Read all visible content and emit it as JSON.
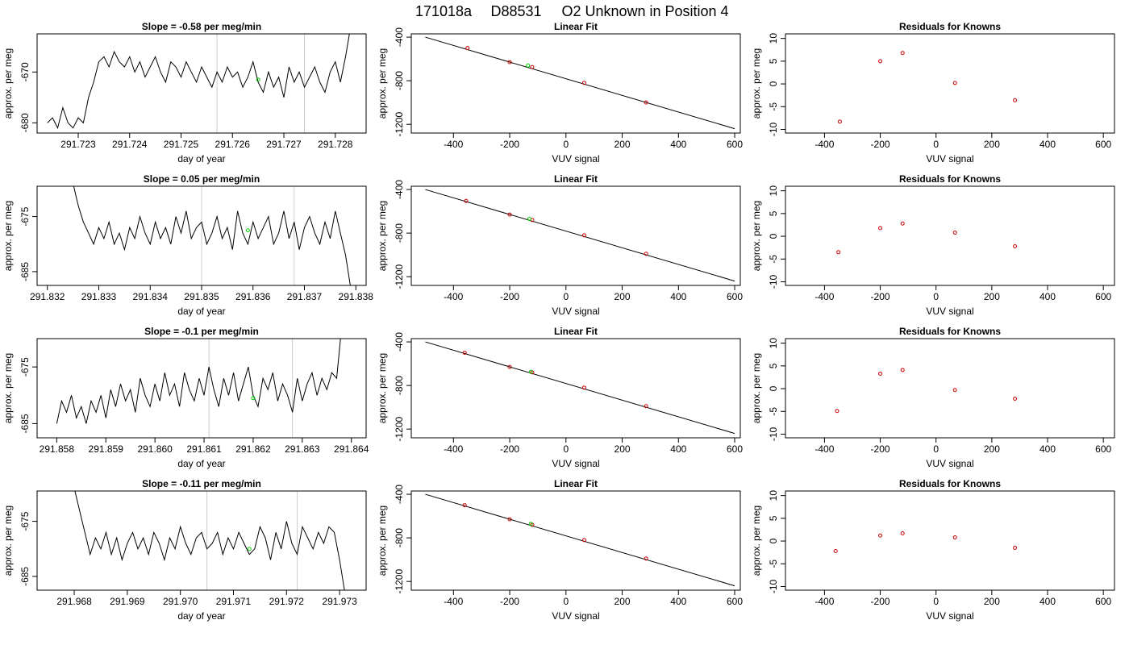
{
  "page": {
    "title_parts": [
      "171018a",
      "D88531",
      "O2 Unknown in Position  4"
    ]
  },
  "chart_data": [
    {
      "type": "line",
      "title": "Slope =  -0.58  per meg/min",
      "xlabel": "day of year",
      "ylabel": "approx. per meg",
      "xlim": [
        291.7222,
        291.7286
      ],
      "ylim": [
        -682,
        -662.5
      ],
      "xticks": [
        "291.723",
        "291.724",
        "291.725",
        "291.726",
        "291.727",
        "291.728"
      ],
      "xtick_values": [
        291.723,
        291.724,
        291.725,
        291.726,
        291.727,
        291.728
      ],
      "yticks": [
        "-680",
        "-670"
      ],
      "ytick_values": [
        -680,
        -670
      ],
      "vlines": [
        291.7257,
        291.7274
      ],
      "green_point": {
        "x": 291.7265,
        "y": -671.5
      },
      "x": [
        291.7224,
        291.7225,
        291.7226,
        291.7227,
        291.7228,
        291.7229,
        291.723,
        291.7231,
        291.7232,
        291.7233,
        291.7234,
        291.7235,
        291.7236,
        291.7237,
        291.7238,
        291.7239,
        291.724,
        291.7241,
        291.7242,
        291.7243,
        291.7244,
        291.7245,
        291.7246,
        291.7247,
        291.7248,
        291.7249,
        291.725,
        291.7251,
        291.7252,
        291.7253,
        291.7254,
        291.7255,
        291.7256,
        291.7257,
        291.7258,
        291.7259,
        291.726,
        291.7261,
        291.7262,
        291.7263,
        291.7264,
        291.7265,
        291.7266,
        291.7267,
        291.7268,
        291.7269,
        291.727,
        291.7271,
        291.7272,
        291.7273,
        291.7274,
        291.7275,
        291.7276,
        291.7277,
        291.7278,
        291.7279,
        291.728,
        291.7281,
        291.7282,
        291.7283
      ],
      "y": [
        -680,
        -679,
        -681,
        -677,
        -680,
        -681,
        -679,
        -680,
        -675,
        -672,
        -668,
        -667,
        -669,
        -666,
        -668,
        -669,
        -667,
        -670,
        -668,
        -671,
        -669,
        -667,
        -670,
        -672,
        -668,
        -669,
        -671,
        -668,
        -670,
        -672,
        -669,
        -671,
        -673,
        -670,
        -672,
        -669,
        -671,
        -670,
        -673,
        -671,
        -668,
        -672,
        -674,
        -670,
        -673,
        -671,
        -675,
        -669,
        -672,
        -670,
        -673,
        -671,
        -669,
        -672,
        -674,
        -670,
        -668,
        -672,
        -667,
        -661
      ],
      "x_data_labels": []
    },
    {
      "type": "scatter",
      "title": "Linear Fit",
      "xlabel": "VUV signal",
      "ylabel": "approx. per meg",
      "xlim": [
        -550,
        620
      ],
      "ylim": [
        -1280,
        -370
      ],
      "xticks": [
        "-400",
        "-200",
        "0",
        "200",
        "400",
        "600"
      ],
      "xtick_values": [
        -400,
        -200,
        0,
        200,
        400,
        600
      ],
      "yticks": [
        "-400",
        "-800",
        "-1200"
      ],
      "ytick_values": [
        -400,
        -800,
        -1200
      ],
      "fit_line": {
        "x": [
          -500,
          600
        ],
        "y": [
          -400,
          -1240
        ]
      },
      "points_x": [
        -350,
        -200,
        -120,
        65,
        285
      ],
      "points_y": [
        -500,
        -630,
        -675,
        -820,
        -1000
      ],
      "green_point": {
        "x": -135,
        "y": -660
      }
    },
    {
      "type": "scatter",
      "title": "Residuals for Knowns",
      "xlabel": "VUV signal",
      "ylabel": "approx. per meg",
      "xlim": [
        -540,
        640
      ],
      "ylim": [
        -10.8,
        11
      ],
      "xticks": [
        "-400",
        "-200",
        "0",
        "200",
        "400",
        "600"
      ],
      "xtick_values": [
        -400,
        -200,
        0,
        200,
        400,
        600
      ],
      "yticks": [
        "-10",
        "-5",
        "0",
        "5",
        "10"
      ],
      "ytick_values": [
        -10,
        -5,
        0,
        5,
        10
      ],
      "points_x": [
        -345,
        -200,
        -120,
        68,
        283
      ],
      "points_y": [
        -8.3,
        5.0,
        6.8,
        0.2,
        -3.6
      ]
    },
    {
      "type": "line",
      "title": "Slope =  0.05  per meg/min",
      "xlabel": "day of year",
      "ylabel": "approx. per meg",
      "xlim": [
        291.8318,
        291.8382
      ],
      "ylim": [
        -687.5,
        -669.5
      ],
      "xticks": [
        "291.832",
        "291.833",
        "291.834",
        "291.835",
        "291.836",
        "291.837",
        "291.838"
      ],
      "xtick_values": [
        291.832,
        291.833,
        291.834,
        291.835,
        291.836,
        291.837,
        291.838
      ],
      "yticks": [
        "-675",
        "-685"
      ],
      "ytick_values": [
        -675,
        -685
      ],
      "vlines": [
        291.835,
        291.8368
      ],
      "green_point": {
        "x": 291.8359,
        "y": -677.5
      },
      "x": [
        291.8325,
        291.8326,
        291.8327,
        291.8328,
        291.8329,
        291.833,
        291.8331,
        291.8332,
        291.8333,
        291.8334,
        291.8335,
        291.8336,
        291.8337,
        291.8338,
        291.8339,
        291.834,
        291.8341,
        291.8342,
        291.8343,
        291.8344,
        291.8345,
        291.8346,
        291.8347,
        291.8348,
        291.8349,
        291.835,
        291.8351,
        291.8352,
        291.8353,
        291.8354,
        291.8355,
        291.8356,
        291.8357,
        291.8358,
        291.8359,
        291.836,
        291.8361,
        291.8362,
        291.8363,
        291.8364,
        291.8365,
        291.8366,
        291.8367,
        291.8368,
        291.8369,
        291.837,
        291.8371,
        291.8372,
        291.8373,
        291.8374,
        291.8375,
        291.8376,
        291.8377,
        291.8378,
        291.8379
      ],
      "y": [
        -669,
        -673,
        -676,
        -678,
        -680,
        -677,
        -679,
        -676,
        -680,
        -678,
        -681,
        -677,
        -679,
        -675,
        -678,
        -680,
        -676,
        -679,
        -677,
        -680,
        -675,
        -678,
        -674,
        -679,
        -677,
        -676,
        -680,
        -678,
        -675,
        -679,
        -677,
        -681,
        -674,
        -678,
        -680,
        -676,
        -679,
        -677,
        -675,
        -680,
        -678,
        -674,
        -679,
        -676,
        -681,
        -677,
        -675,
        -678,
        -680,
        -676,
        -679,
        -674,
        -678,
        -682,
        -688
      ],
      "x_data_labels": []
    },
    {
      "type": "scatter",
      "title": "Linear Fit",
      "xlabel": "VUV signal",
      "ylabel": "approx. per meg",
      "xlim": [
        -550,
        620
      ],
      "ylim": [
        -1280,
        -370
      ],
      "xticks": [
        "-400",
        "-200",
        "0",
        "200",
        "400",
        "600"
      ],
      "xtick_values": [
        -400,
        -200,
        0,
        200,
        400,
        600
      ],
      "yticks": [
        "-400",
        "-800",
        "-1200"
      ],
      "ytick_values": [
        -400,
        -800,
        -1200
      ],
      "fit_line": {
        "x": [
          -500,
          600
        ],
        "y": [
          -400,
          -1240
        ]
      },
      "points_x": [
        -355,
        -200,
        -120,
        65,
        285
      ],
      "points_y": [
        -505,
        -630,
        -680,
        -820,
        -990
      ],
      "green_point": {
        "x": -130,
        "y": -670
      }
    },
    {
      "type": "scatter",
      "title": "Residuals for Knowns",
      "xlabel": "VUV signal",
      "ylabel": "approx. per meg",
      "xlim": [
        -540,
        640
      ],
      "ylim": [
        -10.8,
        11
      ],
      "xticks": [
        "-400",
        "-200",
        "0",
        "200",
        "400",
        "600"
      ],
      "xtick_values": [
        -400,
        -200,
        0,
        200,
        400,
        600
      ],
      "yticks": [
        "-10",
        "-5",
        "0",
        "5",
        "10"
      ],
      "ytick_values": [
        -10,
        -5,
        0,
        5,
        10
      ],
      "points_x": [
        -350,
        -200,
        -120,
        68,
        283
      ],
      "points_y": [
        -3.5,
        1.8,
        2.8,
        0.8,
        -2.2
      ]
    },
    {
      "type": "line",
      "title": "Slope =  -0.1  per meg/min",
      "xlabel": "day of year",
      "ylabel": "approx. per meg",
      "xlim": [
        291.8576,
        291.8643
      ],
      "ylim": [
        -687.5,
        -670
      ],
      "xticks": [
        "291.858",
        "291.859",
        "291.860",
        "291.861",
        "291.862",
        "291.863",
        "291.864"
      ],
      "xtick_values": [
        291.858,
        291.859,
        291.86,
        291.861,
        291.862,
        291.863,
        291.864
      ],
      "yticks": [
        "-675",
        "-685"
      ],
      "ytick_values": [
        -675,
        -685
      ],
      "vlines": [
        291.8611,
        291.8628
      ],
      "green_point": {
        "x": 291.862,
        "y": -680.5
      },
      "x": [
        291.858,
        291.8581,
        291.8582,
        291.8583,
        291.8584,
        291.8585,
        291.8586,
        291.8587,
        291.8588,
        291.8589,
        291.859,
        291.8591,
        291.8592,
        291.8593,
        291.8594,
        291.8595,
        291.8596,
        291.8597,
        291.8598,
        291.8599,
        291.86,
        291.8601,
        291.8602,
        291.8603,
        291.8604,
        291.8605,
        291.8606,
        291.8607,
        291.8608,
        291.8609,
        291.861,
        291.8611,
        291.8612,
        291.8613,
        291.8614,
        291.8615,
        291.8616,
        291.8617,
        291.8618,
        291.8619,
        291.862,
        291.8621,
        291.8622,
        291.8623,
        291.8624,
        291.8625,
        291.8626,
        291.8627,
        291.8628,
        291.8629,
        291.863,
        291.8631,
        291.8632,
        291.8633,
        291.8634,
        291.8635,
        291.8636,
        291.8637,
        291.8638
      ],
      "y": [
        -685,
        -681,
        -683,
        -680,
        -684,
        -682,
        -685,
        -681,
        -683,
        -680,
        -684,
        -679,
        -682,
        -678,
        -681,
        -679,
        -683,
        -677,
        -680,
        -682,
        -678,
        -681,
        -676,
        -680,
        -678,
        -682,
        -676,
        -679,
        -681,
        -677,
        -680,
        -675,
        -679,
        -682,
        -677,
        -680,
        -676,
        -681,
        -678,
        -675,
        -680,
        -682,
        -677,
        -679,
        -676,
        -681,
        -678,
        -680,
        -683,
        -677,
        -681,
        -678,
        -676,
        -680,
        -677,
        -679,
        -676,
        -677,
        -668
      ],
      "x_data_labels": []
    },
    {
      "type": "scatter",
      "title": "Linear Fit",
      "xlabel": "VUV signal",
      "ylabel": "approx. per meg",
      "xlim": [
        -550,
        620
      ],
      "ylim": [
        -1280,
        -370
      ],
      "xticks": [
        "-400",
        "-200",
        "0",
        "200",
        "400",
        "600"
      ],
      "xtick_values": [
        -400,
        -200,
        0,
        200,
        400,
        600
      ],
      "yticks": [
        "-400",
        "-800",
        "-1200"
      ],
      "ytick_values": [
        -400,
        -800,
        -1200
      ],
      "fit_line": {
        "x": [
          -500,
          600
        ],
        "y": [
          -400,
          -1240
        ]
      },
      "points_x": [
        -360,
        -200,
        -120,
        65,
        285
      ],
      "points_y": [
        -500,
        -630,
        -680,
        -820,
        -990
      ],
      "green_point": {
        "x": -125,
        "y": -675
      }
    },
    {
      "type": "scatter",
      "title": "Residuals for Knowns",
      "xlabel": "VUV signal",
      "ylabel": "approx. per meg",
      "xlim": [
        -540,
        640
      ],
      "ylim": [
        -10.8,
        11
      ],
      "xticks": [
        "-400",
        "-200",
        "0",
        "200",
        "400",
        "600"
      ],
      "xtick_values": [
        -400,
        -200,
        0,
        200,
        400,
        600
      ],
      "yticks": [
        "-10",
        "-5",
        "0",
        "5",
        "10"
      ],
      "ytick_values": [
        -10,
        -5,
        0,
        5,
        10
      ],
      "points_x": [
        -355,
        -200,
        -120,
        68,
        283
      ],
      "points_y": [
        -4.9,
        3.3,
        4.1,
        -0.3,
        -2.2
      ]
    },
    {
      "type": "line",
      "title": "Slope =  -0.11  per meg/min",
      "xlabel": "day of year",
      "ylabel": "approx. per meg",
      "xlim": [
        291.9673,
        291.9735
      ],
      "ylim": [
        -687.5,
        -669.5
      ],
      "xticks": [
        "291.968",
        "291.969",
        "291.970",
        "291.971",
        "291.972",
        "291.973"
      ],
      "xtick_values": [
        291.968,
        291.969,
        291.97,
        291.971,
        291.972,
        291.973
      ],
      "yticks": [
        "-675",
        "-685"
      ],
      "ytick_values": [
        -675,
        -685
      ],
      "vlines": [
        291.9705,
        291.9722
      ],
      "green_point": {
        "x": 291.9713,
        "y": -680
      },
      "x": [
        291.968,
        291.9681,
        291.9682,
        291.9683,
        291.9684,
        291.9685,
        291.9686,
        291.9687,
        291.9688,
        291.9689,
        291.969,
        291.9691,
        291.9692,
        291.9693,
        291.9694,
        291.9695,
        291.9696,
        291.9697,
        291.9698,
        291.9699,
        291.97,
        291.9701,
        291.9702,
        291.9703,
        291.9704,
        291.9705,
        291.9706,
        291.9707,
        291.9708,
        291.9709,
        291.971,
        291.9711,
        291.9712,
        291.9713,
        291.9714,
        291.9715,
        291.9716,
        291.9717,
        291.9718,
        291.9719,
        291.972,
        291.9721,
        291.9722,
        291.9723,
        291.9724,
        291.9725,
        291.9726,
        291.9727,
        291.9728,
        291.9729,
        291.973,
        291.9731
      ],
      "y": [
        -669,
        -673,
        -677,
        -681,
        -678,
        -680,
        -677,
        -681,
        -678,
        -682,
        -679,
        -677,
        -680,
        -678,
        -681,
        -677,
        -679,
        -682,
        -678,
        -680,
        -676,
        -679,
        -681,
        -678,
        -677,
        -680,
        -679,
        -677,
        -681,
        -678,
        -680,
        -677,
        -679,
        -681,
        -680,
        -676,
        -678,
        -682,
        -677,
        -680,
        -675,
        -679,
        -681,
        -676,
        -678,
        -680,
        -677,
        -679,
        -676,
        -677,
        -682,
        -688
      ],
      "x_data_labels": []
    },
    {
      "type": "scatter",
      "title": "Linear Fit",
      "xlabel": "VUV signal",
      "ylabel": "approx. per meg",
      "xlim": [
        -550,
        620
      ],
      "ylim": [
        -1280,
        -370
      ],
      "xticks": [
        "-400",
        "-200",
        "0",
        "200",
        "400",
        "600"
      ],
      "xtick_values": [
        -400,
        -200,
        0,
        200,
        400,
        600
      ],
      "yticks": [
        "-400",
        "-800",
        "-1200"
      ],
      "ytick_values": [
        -400,
        -800,
        -1200
      ],
      "fit_line": {
        "x": [
          -500,
          600
        ],
        "y": [
          -400,
          -1240
        ]
      },
      "points_x": [
        -360,
        -200,
        -120,
        65,
        285
      ],
      "points_y": [
        -500,
        -630,
        -680,
        -820,
        -990
      ],
      "green_point": {
        "x": -125,
        "y": -672
      }
    },
    {
      "type": "scatter",
      "title": "Residuals for Knowns",
      "xlabel": "VUV signal",
      "ylabel": "approx. per meg",
      "xlim": [
        -540,
        640
      ],
      "ylim": [
        -10.8,
        11
      ],
      "xticks": [
        "-400",
        "-200",
        "0",
        "200",
        "400",
        "600"
      ],
      "xtick_values": [
        -400,
        -200,
        0,
        200,
        400,
        600
      ],
      "yticks": [
        "-10",
        "-5",
        "0",
        "5",
        "10"
      ],
      "ytick_values": [
        -10,
        -5,
        0,
        5,
        10
      ],
      "points_x": [
        -360,
        -200,
        -120,
        68,
        283
      ],
      "points_y": [
        -2.2,
        1.2,
        1.7,
        0.8,
        -1.5
      ]
    }
  ],
  "colors": {
    "line": "#000000",
    "vline": "#cccccc",
    "point": "#cc0000",
    "green": "#00cc00"
  }
}
